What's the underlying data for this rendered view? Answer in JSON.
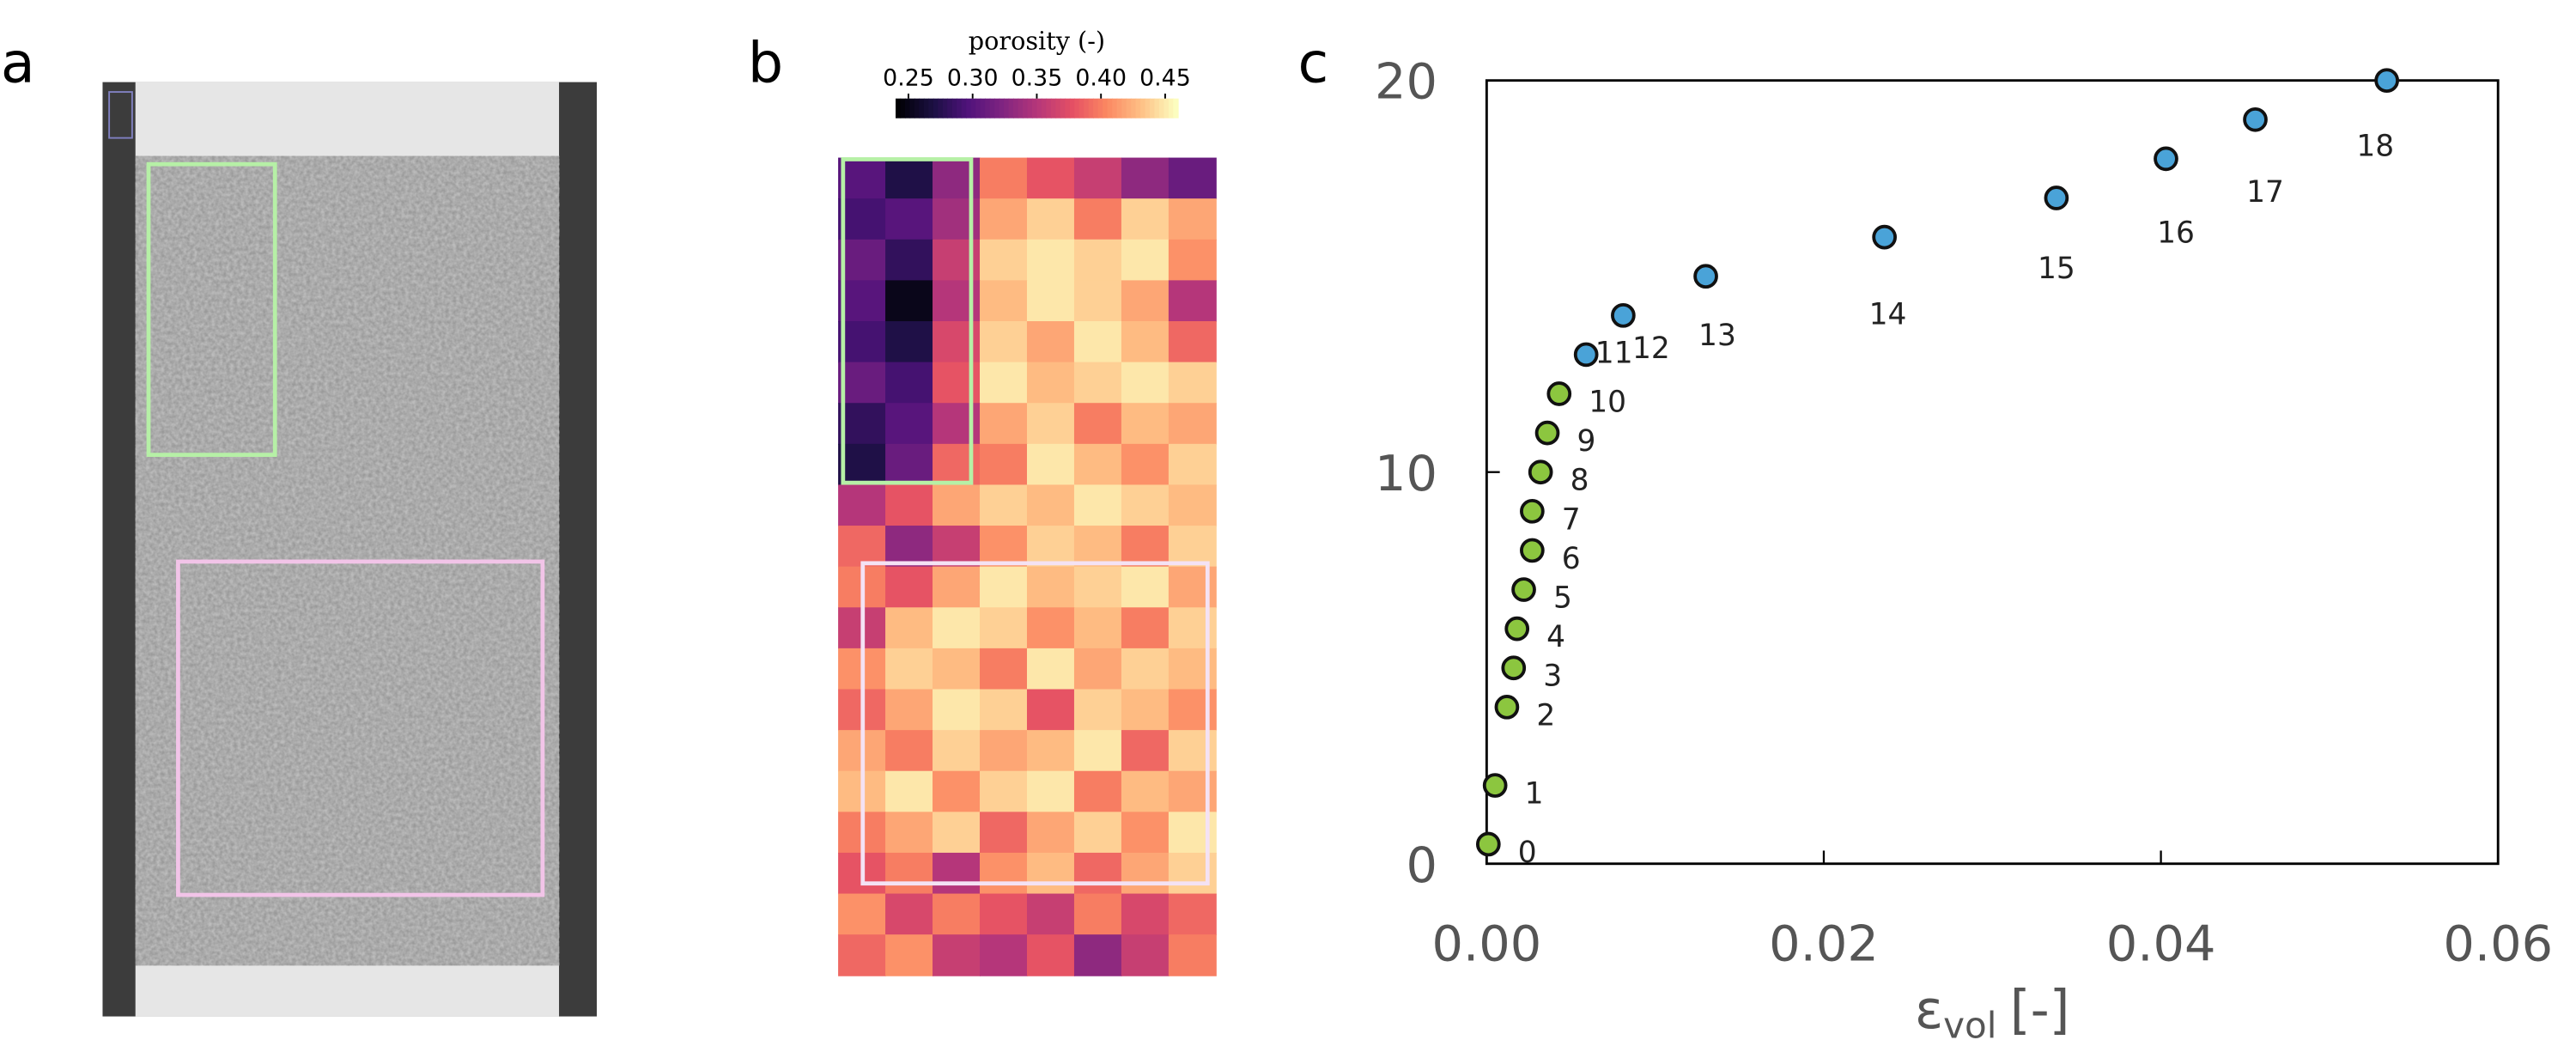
{
  "panel_labels": [
    "a",
    "b",
    "c"
  ],
  "chart_data": [
    {
      "type": "heatmap",
      "colorbar_label": "porosity (-)",
      "colormap": "magma",
      "clim": [
        0.24,
        0.46
      ],
      "colorbar_ticks": [
        0.25,
        {
          "value": 0.3,
          "label": "0.30"
        },
        0.35,
        {
          "value": 0.4,
          "label": "0.40"
        },
        0.45
      ],
      "values": [
        [
          0.3,
          0.27,
          0.33,
          0.4,
          0.38,
          0.36,
          0.33,
          0.31
        ],
        [
          0.29,
          0.3,
          0.34,
          0.42,
          0.44,
          0.4,
          0.44,
          0.42
        ],
        [
          0.31,
          0.28,
          0.36,
          0.44,
          0.45,
          0.44,
          0.45,
          0.41
        ],
        [
          0.3,
          0.25,
          0.35,
          0.43,
          0.45,
          0.44,
          0.42,
          0.35
        ],
        [
          0.29,
          0.27,
          0.37,
          0.44,
          0.42,
          0.45,
          0.43,
          0.39
        ],
        [
          0.31,
          0.29,
          0.38,
          0.45,
          0.43,
          0.44,
          0.45,
          0.44
        ],
        [
          0.28,
          0.3,
          0.35,
          0.42,
          0.44,
          0.4,
          0.43,
          0.42
        ],
        [
          0.27,
          0.31,
          0.39,
          0.4,
          0.45,
          0.43,
          0.41,
          0.44
        ],
        [
          0.35,
          0.38,
          0.42,
          0.44,
          0.43,
          0.45,
          0.44,
          0.43
        ],
        [
          0.39,
          0.33,
          0.36,
          0.41,
          0.44,
          0.43,
          0.4,
          0.44
        ],
        [
          0.4,
          0.38,
          0.42,
          0.45,
          0.43,
          0.44,
          0.45,
          0.42
        ],
        [
          0.36,
          0.43,
          0.45,
          0.44,
          0.41,
          0.43,
          0.4,
          0.44
        ],
        [
          0.41,
          0.44,
          0.43,
          0.4,
          0.45,
          0.42,
          0.44,
          0.43
        ],
        [
          0.39,
          0.42,
          0.45,
          0.44,
          0.38,
          0.44,
          0.43,
          0.41
        ],
        [
          0.42,
          0.4,
          0.44,
          0.42,
          0.43,
          0.45,
          0.39,
          0.44
        ],
        [
          0.43,
          0.45,
          0.41,
          0.44,
          0.45,
          0.4,
          0.43,
          0.42
        ],
        [
          0.4,
          0.42,
          0.44,
          0.39,
          0.42,
          0.44,
          0.41,
          0.45
        ],
        [
          0.38,
          0.4,
          0.35,
          0.41,
          0.43,
          0.39,
          0.42,
          0.44
        ],
        [
          0.41,
          0.37,
          0.4,
          0.38,
          0.36,
          0.4,
          0.37,
          0.39
        ],
        [
          0.39,
          0.41,
          0.36,
          0.35,
          0.38,
          0.33,
          0.36,
          0.4
        ]
      ]
    },
    {
      "type": "scatter",
      "xlabel": {
        "symbol": "ε",
        "subscript": "vol",
        "unit": "[-]"
      },
      "xlim": [
        0,
        0.06
      ],
      "ylim": [
        0,
        20
      ],
      "xticks": [
        {
          "value": 0,
          "label": "0.00"
        },
        0.02,
        0.04,
        0.06
      ],
      "yticks": [
        0,
        10,
        20
      ],
      "series": [
        {
          "color": "#8cc63f",
          "x": [
            0.0001,
            0.0005,
            0.0012,
            0.0016,
            0.0018,
            0.0022,
            0.0027,
            0.0027,
            0.0032,
            0.0036,
            0.0043
          ],
          "values": [
            0.5,
            2,
            4,
            5,
            6,
            7,
            8,
            9,
            10,
            11,
            12
          ],
          "point_labels": [
            "0",
            "1",
            "2",
            "3",
            "4",
            "5",
            "6",
            "7",
            "8",
            "9",
            "10"
          ]
        },
        {
          "color": "#4aa3d8",
          "x": [
            0.0059,
            0.0081,
            0.013,
            0.0236,
            0.0338,
            0.0403,
            0.0456,
            0.0534
          ],
          "values": [
            13,
            14,
            15,
            16,
            17,
            18,
            19,
            20
          ],
          "point_labels": [
            "11",
            "12",
            "13",
            "14",
            "15",
            "16",
            "17",
            "18"
          ]
        }
      ]
    }
  ]
}
